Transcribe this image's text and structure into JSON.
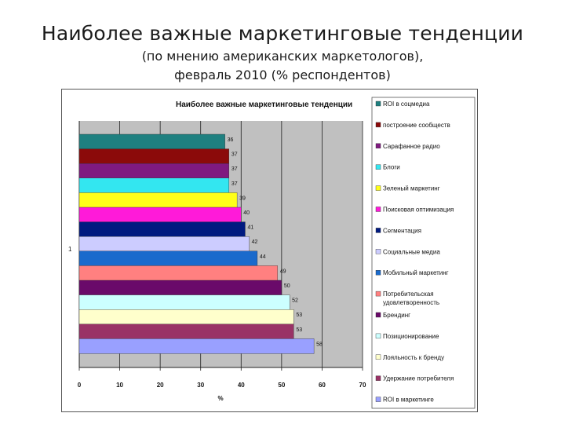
{
  "slide": {
    "title": "Наиболее важные маркетинговые тенденции",
    "subtitle_line1": "(по мнению американских маркетологов),",
    "subtitle_line2": "февраль 2010 (% респондентов)"
  },
  "chart_data": {
    "type": "bar",
    "orientation": "horizontal",
    "title": "Наиболее важные маркетинговые тенденции",
    "category_axis_label": "1",
    "xlabel": "%",
    "xlim": [
      0,
      70
    ],
    "xticks": [
      0,
      10,
      20,
      30,
      40,
      50,
      60,
      70
    ],
    "grid": true,
    "legend_position": "right",
    "series": [
      {
        "name": "ROI в соцмедиа",
        "value": 36,
        "color": "#1f8080"
      },
      {
        "name": "построение сообществ",
        "value": 37,
        "color": "#8b0a0a"
      },
      {
        "name": "Сарафанное радио",
        "value": 37,
        "color": "#7f1a80"
      },
      {
        "name": "Блоги",
        "value": 37,
        "color": "#33e6f0"
      },
      {
        "name": "Зеленый маркетинг",
        "value": 39,
        "color": "#ffff1a"
      },
      {
        "name": "Поисковая оптимизация",
        "value": 40,
        "color": "#ff1ad9"
      },
      {
        "name": "Сегментация",
        "value": 41,
        "color": "#001a80"
      },
      {
        "name": "Социальные медиа",
        "value": 42,
        "color": "#ccccff"
      },
      {
        "name": "Мобильный маркетинг",
        "value": 44,
        "color": "#1a6acc"
      },
      {
        "name": "Потребительская удовлетворенность",
        "value": 49,
        "color": "#ff8080"
      },
      {
        "name": "Брендинг",
        "value": 50,
        "color": "#6a0a6a"
      },
      {
        "name": "Позиционирование",
        "value": 52,
        "color": "#ccffff"
      },
      {
        "name": "Лояльность к бренду",
        "value": 53,
        "color": "#ffffcc"
      },
      {
        "name": "Удержание потребителя",
        "value": 53,
        "color": "#993366"
      },
      {
        "name": "ROI в маркетинге",
        "value": 58,
        "color": "#99a0ff"
      }
    ]
  }
}
